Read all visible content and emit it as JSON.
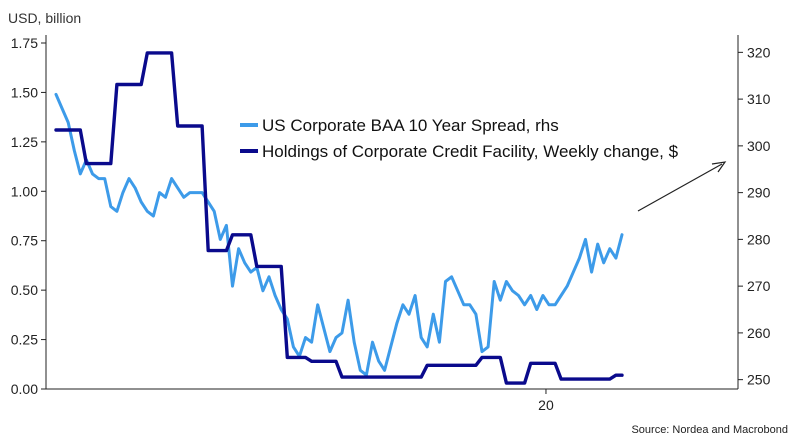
{
  "chart_data": {
    "type": "line",
    "unit_label": "USD, billion",
    "source": "Source: Nordea and Macrobond",
    "x_ticks": [
      {
        "label": "20",
        "at": 81
      }
    ],
    "x_range": [
      0,
      100
    ],
    "y_left": {
      "range": [
        0,
        1.75
      ],
      "ticks": [
        "0.00",
        "0.25",
        "0.50",
        "0.75",
        "1.00",
        "1.25",
        "1.50",
        "1.75"
      ]
    },
    "y_right": {
      "range": [
        248,
        322
      ],
      "ticks": [
        "250",
        "260",
        "270",
        "280",
        "290",
        "300",
        "310",
        "320"
      ]
    },
    "legend_position": "center-top",
    "annotation": "arrow pointing up-right",
    "colors": {
      "spread": "#3d9be9",
      "holdings": "#0a0a8c",
      "axis": "#222222"
    },
    "series": [
      {
        "name": "US Corporate BAA 10 Year Spread, rhs",
        "axis": "right",
        "color": "#3d9be9",
        "x": [
          0,
          1,
          2,
          3,
          4,
          5,
          6,
          7,
          8,
          9,
          10,
          11,
          12,
          13,
          14,
          15,
          16,
          17,
          18,
          19,
          20,
          21,
          22,
          23,
          24,
          25,
          26,
          27,
          28,
          29,
          30,
          31,
          32,
          33,
          34,
          35,
          36,
          37,
          38,
          39,
          40,
          41,
          42,
          43,
          44,
          45,
          46,
          47,
          48,
          49,
          50,
          51,
          52,
          53,
          54,
          55,
          56,
          57,
          58,
          59,
          60,
          61,
          62,
          63,
          64,
          65,
          66,
          67,
          68,
          69,
          70,
          71,
          72,
          73,
          74,
          75,
          76,
          77,
          78,
          79,
          80,
          81,
          82,
          83,
          84,
          85,
          86,
          87,
          88,
          89,
          90,
          91,
          92,
          93
        ],
        "values": [
          311,
          308,
          305,
          299,
          294,
          297,
          294,
          293,
          293,
          287,
          286,
          290,
          293,
          291,
          288,
          286,
          285,
          290,
          289,
          293,
          291,
          289,
          290,
          290,
          290,
          288,
          286,
          280,
          283,
          270,
          278,
          275,
          273,
          274,
          269,
          272,
          268,
          265,
          263,
          257,
          255,
          259,
          258,
          266,
          261,
          256,
          259,
          260,
          267,
          258,
          252,
          251,
          258,
          254,
          252,
          257,
          262,
          266,
          264,
          268,
          259,
          257,
          264,
          258,
          271,
          272,
          269,
          266,
          266,
          264,
          256,
          257,
          271,
          267,
          271,
          269,
          268,
          266,
          268,
          265,
          268,
          266,
          266,
          268,
          270,
          273,
          276,
          280,
          273,
          279,
          275,
          278,
          276,
          281
        ]
      },
      {
        "name": "Holdings of Corporate Credit Facility, Weekly change, $",
        "axis": "left",
        "color": "#0a0a8c",
        "x": [
          0,
          4,
          5,
          9,
          10,
          14,
          15,
          19,
          20,
          24,
          25,
          28,
          29,
          32,
          33,
          37,
          38,
          41,
          42,
          46,
          47,
          50,
          51,
          55,
          56,
          60,
          61,
          65,
          66,
          69,
          70,
          73,
          74,
          77,
          78,
          82,
          83,
          87,
          88,
          91,
          92,
          93
        ],
        "values": [
          1.31,
          1.31,
          1.14,
          1.14,
          1.54,
          1.54,
          1.7,
          1.7,
          1.33,
          1.33,
          0.7,
          0.7,
          0.78,
          0.78,
          0.62,
          0.62,
          0.16,
          0.16,
          0.14,
          0.14,
          0.06,
          0.06,
          0.06,
          0.06,
          0.06,
          0.06,
          0.12,
          0.12,
          0.12,
          0.12,
          0.16,
          0.16,
          0.03,
          0.03,
          0.13,
          0.13,
          0.05,
          0.05,
          0.05,
          0.05,
          0.07,
          0.07
        ]
      }
    ]
  }
}
